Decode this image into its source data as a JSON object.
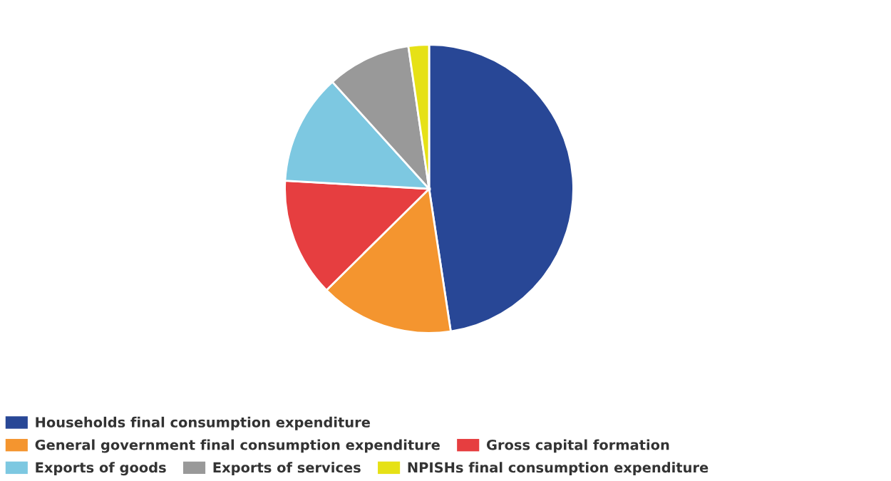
{
  "chart_data": {
    "type": "pie",
    "categories": [
      "Households final consumption expenditure",
      "General government final consumption expenditure",
      "Gross capital formation",
      "Exports of goods",
      "Exports of services",
      "NPISHs final consumption expenditure"
    ],
    "values": [
      47.6,
      15.0,
      13.3,
      12.4,
      9.4,
      2.3
    ],
    "colors": [
      "#284796",
      "#f4952f",
      "#e63e40",
      "#7dc8e1",
      "#999999",
      "#e6e116"
    ],
    "legend": "bottom"
  }
}
